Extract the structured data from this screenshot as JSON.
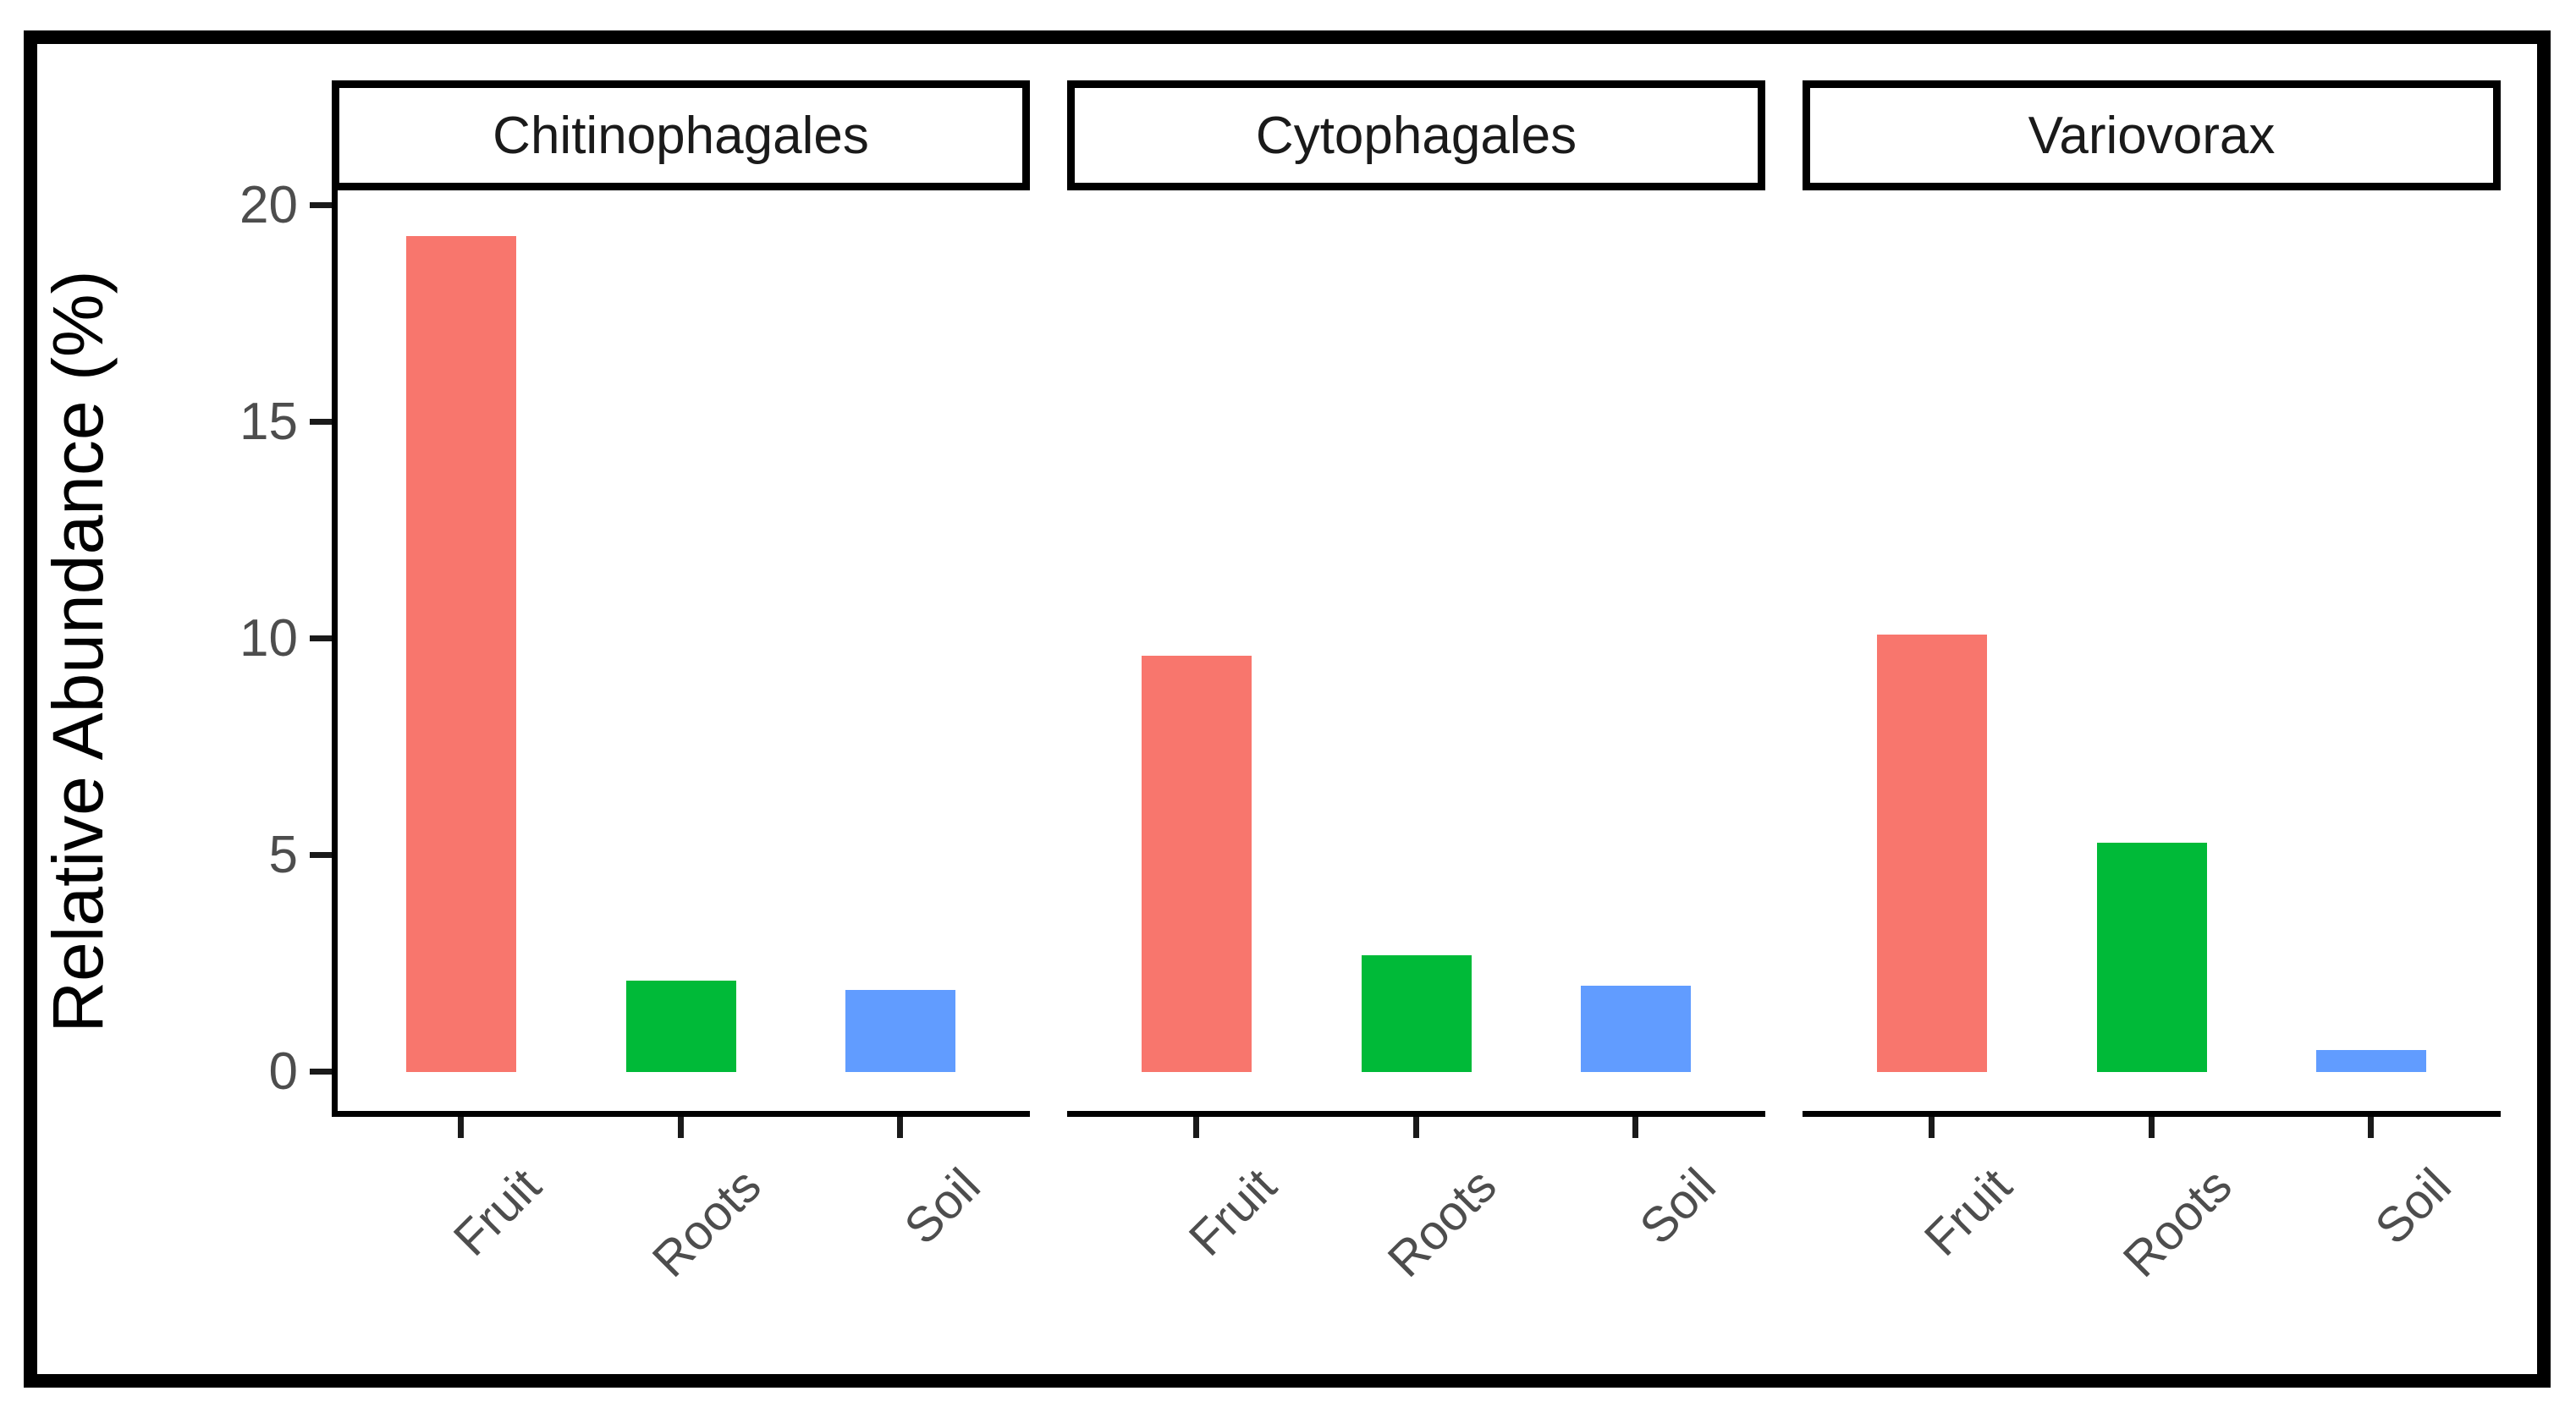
{
  "chart_data": {
    "type": "bar",
    "title": "",
    "ylabel": "Relative Abundance (%)",
    "xlabel": "",
    "categories": [
      "Fruit",
      "Roots",
      "Soil"
    ],
    "facets": [
      {
        "label": "Chitinophagales",
        "values": [
          19.3,
          2.1,
          1.9
        ]
      },
      {
        "label": "Cytophagales",
        "values": [
          9.6,
          2.7,
          2.0
        ]
      },
      {
        "label": "Variovorax",
        "values": [
          10.1,
          5.3,
          0.5
        ]
      }
    ],
    "bar_colors": [
      "#F8766D",
      "#00BA38",
      "#619CFF"
    ],
    "y_ticks": [
      0,
      5,
      10,
      15,
      20
    ],
    "ylim": [
      0,
      20.4
    ],
    "grid": false,
    "legend_position": "none",
    "x_tick_angle": 45,
    "colors": {
      "axis": "#000000",
      "tick_mark": "#1a1a1a",
      "tick_text": "#4d4d4d",
      "strip_text": "#1a1a1a",
      "strip_border": "#000000",
      "figure_border": "#000000",
      "background": "#ffffff"
    }
  }
}
